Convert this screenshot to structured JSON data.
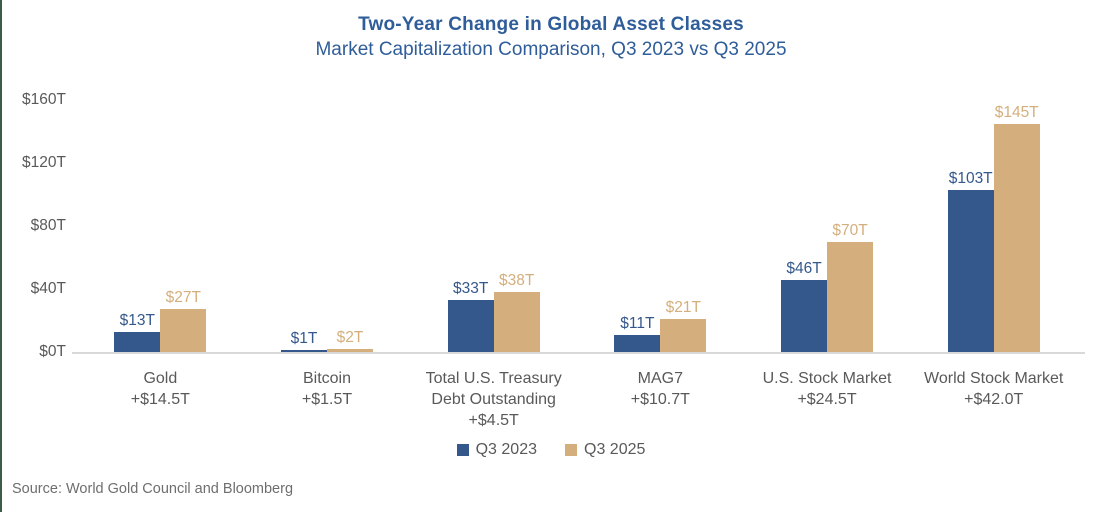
{
  "page": {
    "background": "#ffffff",
    "left_edge_color": "#3a5c48"
  },
  "header": {
    "title": "Two-Year Change in Global Asset Classes",
    "subtitle": "Market Capitalization Comparison, Q3 2023 vs Q3 2025",
    "title_color": "#2f5d99"
  },
  "chart_data": {
    "type": "bar",
    "title": "Two-Year Change in Global Asset Classes",
    "subtitle": "Market Capitalization Comparison, Q3 2023 vs Q3 2025",
    "categories": [
      {
        "lines": [
          "Gold"
        ],
        "change": "+$14.5T"
      },
      {
        "lines": [
          "Bitcoin"
        ],
        "change": "+$1.5T"
      },
      {
        "lines": [
          "Total U.S. Treasury",
          "Debt Outstanding"
        ],
        "change": "+$4.5T"
      },
      {
        "lines": [
          "MAG7"
        ],
        "change": "+$10.7T"
      },
      {
        "lines": [
          "U.S. Stock Market"
        ],
        "change": "+$24.5T"
      },
      {
        "lines": [
          "World Stock Market"
        ],
        "change": "+$42.0T"
      }
    ],
    "series": [
      {
        "name": "Q3 2023",
        "color": "#35588c",
        "values": [
          13,
          1,
          33,
          11,
          46,
          103
        ],
        "data_labels": [
          "$13T",
          "$1T",
          "$33T",
          "$11T",
          "$46T",
          "$103T"
        ]
      },
      {
        "name": "Q3 2025",
        "color": "#d4af7d",
        "values": [
          27,
          2,
          38,
          21,
          70,
          145
        ],
        "data_labels": [
          "$27T",
          "$2T",
          "$38T",
          "$21T",
          "$70T",
          "$145T"
        ]
      }
    ],
    "ylabel": "",
    "xlabel": "",
    "ylim": [
      0,
      160
    ],
    "ytick_values": [
      0,
      40,
      80,
      120,
      160
    ],
    "ytick_labels": [
      "$0T",
      "$40T",
      "$80T",
      "$120T",
      "$160T"
    ],
    "grid": false,
    "legend_position": "bottom",
    "axis_line_color": "#d9d9d9",
    "text_color": "#595959"
  },
  "source": "Source: World Gold Council and Bloomberg"
}
